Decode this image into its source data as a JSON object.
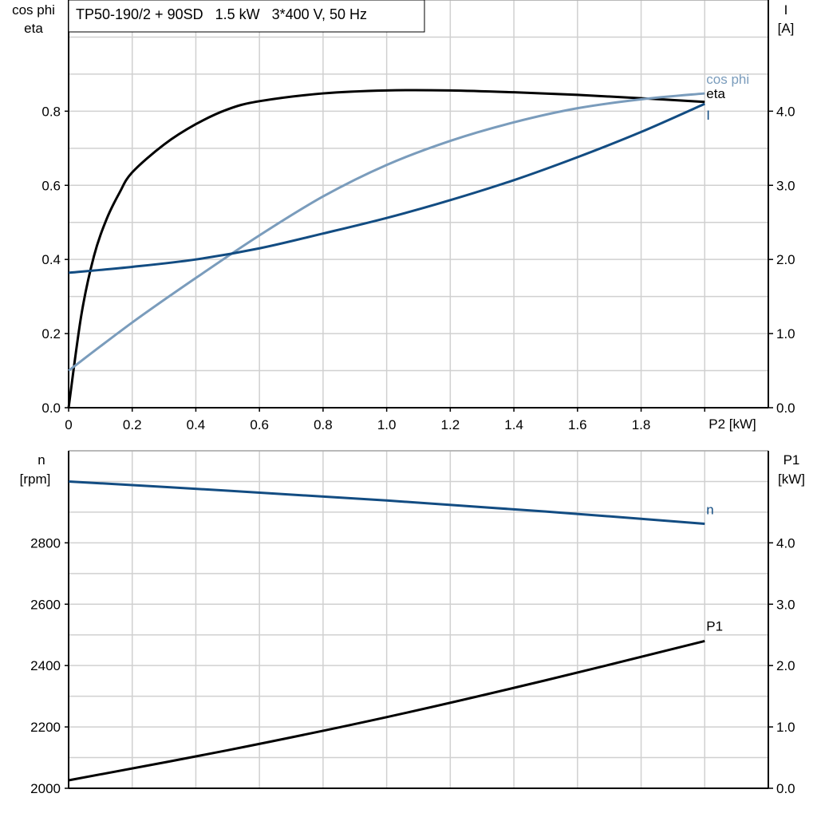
{
  "chart_data": [
    {
      "type": "line",
      "title": "TP50-190/2 + 90SD   1.5 kW   3*400 V, 50 Hz",
      "xlabel": "P2 [kW]",
      "ylabel_left": [
        "cos phi",
        "eta"
      ],
      "ylabel_right": [
        "I",
        "[A]"
      ],
      "xlim": [
        0,
        2.2
      ],
      "ylim_left": [
        0,
        1.1
      ],
      "ylim_right": [
        0,
        5.5
      ],
      "grid": true,
      "x_ticks": [
        "0",
        "0.2",
        "0.4",
        "0.6",
        "0.8",
        "1.0",
        "1.2",
        "1.4",
        "1.6",
        "1.8"
      ],
      "y_ticks_left": [
        "0.0",
        "0.2",
        "0.4",
        "0.6",
        "0.8"
      ],
      "y_ticks_right": [
        "0.0",
        "1.0",
        "2.0",
        "3.0",
        "4.0"
      ],
      "series": [
        {
          "name": "eta",
          "axis": "left",
          "color": "#000000",
          "x": [
            0,
            0.04,
            0.08,
            0.12,
            0.16,
            0.2,
            0.3,
            0.4,
            0.5,
            0.6,
            0.8,
            1.0,
            1.2,
            1.4,
            1.6,
            1.8,
            2.0
          ],
          "y": [
            0,
            0.25,
            0.41,
            0.51,
            0.58,
            0.635,
            0.71,
            0.765,
            0.805,
            0.827,
            0.848,
            0.856,
            0.856,
            0.851,
            0.844,
            0.835,
            0.825
          ]
        },
        {
          "name": "cos phi",
          "axis": "left",
          "color": "#7a9cbc",
          "x": [
            0,
            0.2,
            0.4,
            0.6,
            0.8,
            1.0,
            1.2,
            1.4,
            1.6,
            1.8,
            2.0
          ],
          "y": [
            0.1,
            0.23,
            0.35,
            0.465,
            0.57,
            0.655,
            0.72,
            0.77,
            0.808,
            0.832,
            0.848
          ]
        },
        {
          "name": "I",
          "axis": "right",
          "color": "#124c82",
          "x": [
            0,
            0.2,
            0.4,
            0.6,
            0.8,
            1.0,
            1.2,
            1.4,
            1.6,
            1.8,
            2.0
          ],
          "y": [
            1.82,
            1.9,
            2.0,
            2.15,
            2.35,
            2.56,
            2.8,
            3.07,
            3.38,
            3.72,
            4.1
          ]
        }
      ]
    },
    {
      "type": "line",
      "xlabel": "",
      "ylabel_left": [
        "n",
        "[rpm]"
      ],
      "ylabel_right": [
        "P1",
        "[kW]"
      ],
      "xlim": [
        0,
        2.2
      ],
      "ylim_left": [
        2000,
        3100
      ],
      "ylim_right": [
        0,
        5.5
      ],
      "grid": true,
      "y_ticks_left": [
        "2000",
        "2200",
        "2400",
        "2600",
        "2800"
      ],
      "y_ticks_right": [
        "0.0",
        "1.0",
        "2.0",
        "3.0",
        "4.0"
      ],
      "series": [
        {
          "name": "n",
          "axis": "left",
          "color": "#124c82",
          "x": [
            0,
            0.5,
            1.0,
            1.5,
            2.0
          ],
          "y": [
            3000,
            2970,
            2938,
            2902,
            2862
          ]
        },
        {
          "name": "P1",
          "axis": "right",
          "color": "#000000",
          "x": [
            0,
            0.5,
            1.0,
            1.5,
            2.0
          ],
          "y": [
            0.13,
            0.62,
            1.16,
            1.76,
            2.4
          ]
        }
      ]
    }
  ]
}
